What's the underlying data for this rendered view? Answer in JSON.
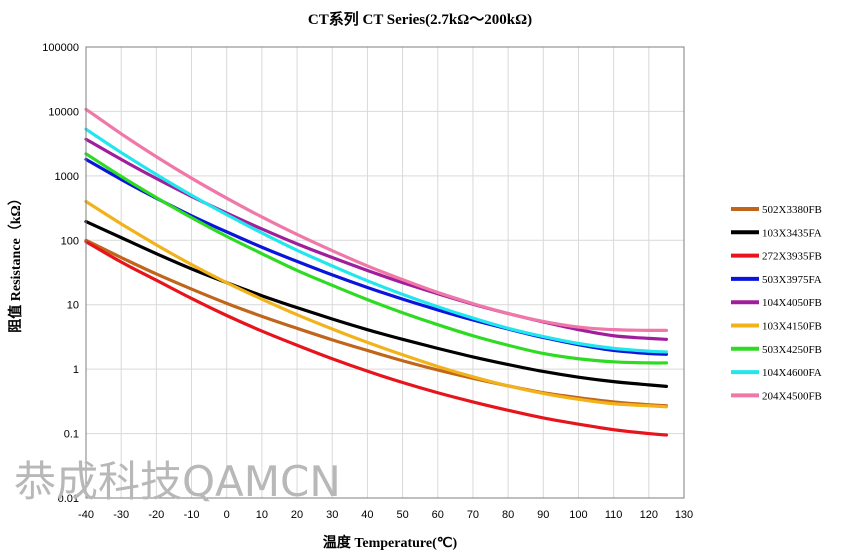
{
  "chart_data": {
    "type": "line",
    "title": "CT系列 CT Series(2.7kΩ～200kΩ)",
    "xlabel": "温度 Temperature(℃)",
    "ylabel": "阻值 Resistance（kΩ）",
    "x_scale": "linear",
    "y_scale": "log",
    "xlim": [
      -40,
      130
    ],
    "ylim": [
      0.01,
      100000
    ],
    "x_ticks": [
      -40,
      -30,
      -20,
      -10,
      0,
      10,
      20,
      30,
      40,
      50,
      60,
      70,
      80,
      90,
      100,
      110,
      120,
      130
    ],
    "x_tick_labels": [
      "-40",
      "-30",
      "-20",
      "-10",
      "0",
      "10",
      "20",
      "30",
      "40",
      "50",
      "60",
      "70",
      "80",
      "90",
      "100",
      "110",
      "120",
      "130"
    ],
    "y_ticks": [
      0.01,
      0.1,
      1,
      10,
      100,
      1000,
      10000,
      100000
    ],
    "y_tick_labels": [
      "0.01",
      "0.1",
      "1",
      "10",
      "100",
      "1000",
      "10000",
      "100000"
    ],
    "grid": true,
    "legend_position": "right",
    "x": [
      -40,
      -30,
      -20,
      -10,
      0,
      10,
      20,
      30,
      40,
      50,
      60,
      70,
      80,
      90,
      100,
      110,
      120,
      125
    ],
    "series": [
      {
        "name": "502X3380FB",
        "color": "#c0651a",
        "values": [
          100,
          54,
          30,
          17.5,
          10.5,
          6.6,
          4.3,
          2.85,
          1.95,
          1.35,
          0.97,
          0.72,
          0.55,
          0.43,
          0.36,
          0.31,
          0.28,
          0.27
        ]
      },
      {
        "name": "103X3435FA",
        "color": "#000000",
        "values": [
          195,
          110,
          62,
          36,
          22,
          13.8,
          9,
          6,
          4.1,
          2.9,
          2.1,
          1.55,
          1.18,
          0.92,
          0.75,
          0.64,
          0.57,
          0.54
        ]
      },
      {
        "name": "272X3935FB",
        "color": "#e8141c",
        "values": [
          95,
          46,
          24,
          12.5,
          6.8,
          3.9,
          2.35,
          1.45,
          0.93,
          0.62,
          0.43,
          0.31,
          0.23,
          0.175,
          0.14,
          0.115,
          0.1,
          0.095
        ]
      },
      {
        "name": "503X3975FA",
        "color": "#0a14dc",
        "values": [
          1800,
          880,
          450,
          240,
          135,
          78,
          47,
          29,
          18.5,
          12.2,
          8.3,
          5.8,
          4.2,
          3.1,
          2.4,
          1.95,
          1.75,
          1.7
        ]
      },
      {
        "name": "104X4050FB",
        "color": "#a01e9c",
        "values": [
          3700,
          1800,
          910,
          480,
          265,
          150,
          88,
          54,
          34,
          22,
          14.8,
          10.2,
          7.3,
          5.4,
          4.1,
          3.3,
          3,
          2.9
        ]
      },
      {
        "name": "103X4150FB",
        "color": "#f2b21a",
        "values": [
          400,
          180,
          85,
          42,
          22,
          12.2,
          7,
          4.2,
          2.6,
          1.67,
          1.1,
          0.76,
          0.55,
          0.42,
          0.34,
          0.29,
          0.27,
          0.26
        ]
      },
      {
        "name": "503X4250FB",
        "color": "#2ddc22",
        "values": [
          2200,
          980,
          460,
          225,
          115,
          62,
          34,
          20,
          12,
          7.5,
          4.9,
          3.3,
          2.35,
          1.75,
          1.45,
          1.3,
          1.25,
          1.25
        ]
      },
      {
        "name": "104X4600FA",
        "color": "#22e6ee",
        "values": [
          5300,
          2300,
          1050,
          500,
          250,
          130,
          70,
          40,
          23.5,
          14.5,
          9.3,
          6.2,
          4.3,
          3.2,
          2.5,
          2.1,
          1.9,
          1.85
        ]
      },
      {
        "name": "204X4500FB",
        "color": "#f078a8",
        "values": [
          10800,
          4500,
          1980,
          920,
          450,
          230,
          123,
          69,
          40,
          24.5,
          15.5,
          10.4,
          7.3,
          5.5,
          4.5,
          4.1,
          4,
          4
        ]
      }
    ]
  },
  "watermark": "恭成科技QAMCN"
}
